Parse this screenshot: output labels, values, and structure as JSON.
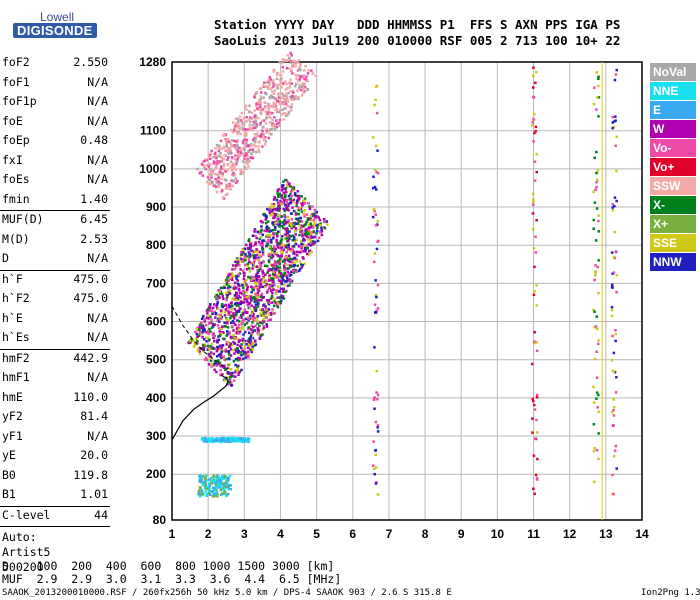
{
  "logo": {
    "top": "Lowell",
    "bottom": "DIGISONDE"
  },
  "header": {
    "line1": "Station YYYY DAY   DDD HHMMSS P1  FFS S AXN PPS IGA PS",
    "line2": "SaoLuis 2013 Jul19 200 010000 RSF 005 2 713 100 10+ 22"
  },
  "params_group1": [
    {
      "name": "foF2",
      "value": "2.550"
    },
    {
      "name": "foF1",
      "value": "N/A"
    },
    {
      "name": "foF1p",
      "value": "N/A"
    },
    {
      "name": "foE",
      "value": "N/A"
    },
    {
      "name": "foEp",
      "value": "0.48"
    },
    {
      "name": "fxI",
      "value": "N/A"
    },
    {
      "name": "foEs",
      "value": "N/A"
    },
    {
      "name": "fmin",
      "value": "1.40"
    }
  ],
  "params_group2": [
    {
      "name": "MUF(D)",
      "value": "6.45"
    },
    {
      "name": "M(D)",
      "value": "2.53"
    },
    {
      "name": "D",
      "value": "N/A"
    }
  ],
  "params_group3": [
    {
      "name": "h`F",
      "value": "475.0"
    },
    {
      "name": "h`F2",
      "value": "475.0"
    },
    {
      "name": "h`E",
      "value": "N/A"
    },
    {
      "name": "h`Es",
      "value": "N/A"
    }
  ],
  "params_group4": [
    {
      "name": "hmF2",
      "value": "442.9"
    },
    {
      "name": "hmF1",
      "value": "N/A"
    },
    {
      "name": "hmE",
      "value": "110.0"
    },
    {
      "name": "yF2",
      "value": "81.4"
    },
    {
      "name": "yF1",
      "value": "N/A"
    },
    {
      "name": "yE",
      "value": "20.0"
    },
    {
      "name": "B0",
      "value": "119.8"
    },
    {
      "name": "B1",
      "value": "1.01"
    }
  ],
  "params_group5": [
    {
      "name": "C-level",
      "value": "44"
    }
  ],
  "autoscale": {
    "line1": "Auto:",
    "line2": "Artist5",
    "line3": "500200"
  },
  "muf_table": {
    "row1": "D    100  200  400  600  800 1000 1500 3000 [km]",
    "row2": "MUF  2.9  2.9  3.0  3.1  3.3  3.6  4.4  6.5 [MHz]"
  },
  "footer": {
    "left": "SAAOK_2013200010000.RSF / 260fx256h 50 kHz 5.0 km / DPS-4 SAAOK 903 / 2.6 S 315.8 E",
    "right": "Ion2Png 1.3.17"
  },
  "legend": [
    {
      "label": "NoVal",
      "color": "#a8a8a8"
    },
    {
      "label": "NNE",
      "color": "#18e0f0"
    },
    {
      "label": "E",
      "color": "#3aa8f0"
    },
    {
      "label": "W",
      "color": "#b000b0"
    },
    {
      "label": "Vo-",
      "color": "#f04aa8"
    },
    {
      "label": "Vo+",
      "color": "#e0002a"
    },
    {
      "label": "SSW",
      "color": "#f4a8a8"
    },
    {
      "label": "X-",
      "color": "#00801a"
    },
    {
      "label": "X+",
      "color": "#78b040"
    },
    {
      "label": "SSE",
      "color": "#d0c818"
    },
    {
      "label": "NNW",
      "color": "#2020c0"
    }
  ],
  "chart_data": {
    "type": "scatter",
    "xlim": [
      1,
      14
    ],
    "ylim": [
      80,
      1280
    ],
    "xticks": [
      "1",
      "2",
      "3",
      "4",
      "5",
      "6",
      "7",
      "8",
      "9",
      "10",
      "11",
      "12",
      "13",
      "14"
    ],
    "yticks": [
      "80",
      "200",
      "300",
      "400",
      "500",
      "600",
      "700",
      "800",
      "900",
      "1000",
      "1100",
      "1280"
    ],
    "grid": true,
    "echo_regions": [
      {
        "name": "F2 trace",
        "x_range": [
          1.7,
          5.0
        ],
        "y_range": [
          480,
          930
        ]
      },
      {
        "name": "F2 second hop",
        "x_range": [
          1.9,
          4.6
        ],
        "y_range": [
          960,
          1280
        ]
      },
      {
        "name": "Es trace 300km",
        "x_range": [
          1.8,
          3.1
        ],
        "y_range": [
          285,
          300
        ]
      },
      {
        "name": "Es trace 150-200km",
        "x_range": [
          1.7,
          2.6
        ],
        "y_range": [
          145,
          200
        ]
      }
    ],
    "profile_curve": {
      "x": [
        1.0,
        1.3,
        1.6,
        1.9,
        2.15,
        2.35,
        2.5,
        2.55,
        2.5,
        2.35
      ],
      "y": [
        290,
        340,
        370,
        390,
        405,
        420,
        432,
        442,
        452,
        460
      ]
    },
    "virtual_height_trace": {
      "x": [
        1.0,
        1.3,
        1.6,
        1.9,
        2.2,
        2.4,
        2.55
      ],
      "y": [
        640,
        590,
        550,
        520,
        498,
        485,
        476
      ]
    },
    "mhz_marker_x": 12.9
  }
}
